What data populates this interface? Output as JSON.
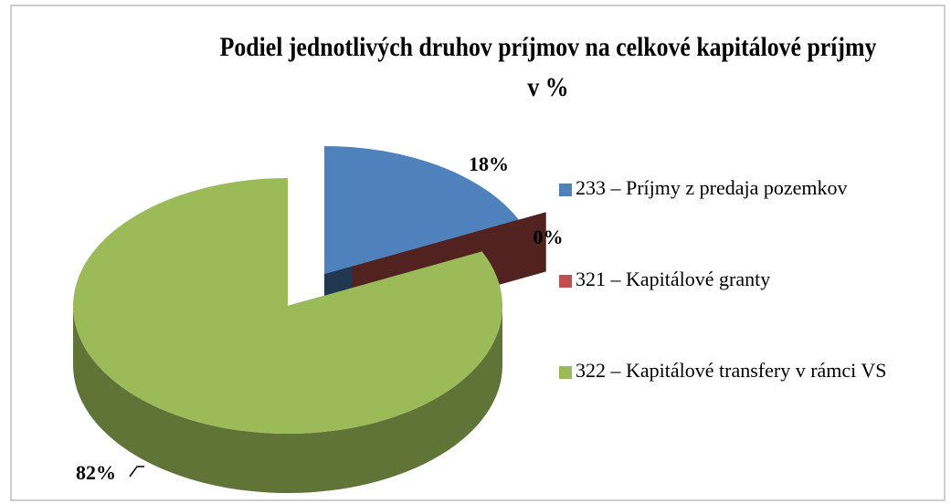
{
  "chart_data": {
    "type": "pie",
    "title": "Podiel jednotlivých druhov príjmov na celkové kapitálové príjmy v %",
    "categories": [
      "233 – Príjmy z predaja pozemkov",
      "321 – Kapitálové granty",
      "322 – Kapitálové transfery v rámci VS"
    ],
    "values": [
      18,
      0,
      82
    ],
    "value_labels": [
      "18%",
      "0%",
      "82%"
    ],
    "colors": [
      "#4f81bd",
      "#c0504d",
      "#9bbb59"
    ],
    "legend": "right"
  }
}
